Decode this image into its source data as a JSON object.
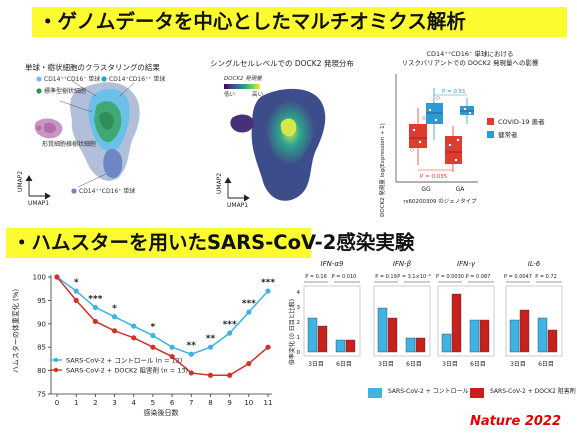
{
  "banners": {
    "top": "・ゲノムデータを中心としたマルチオミクス解析",
    "middle": "・ハムスターを用いたSARS-CoV-2感染実験"
  },
  "umap_left": {
    "title": "単球・樹状細胞のクラスタリングの結果",
    "clusters": [
      "CD14⁺⁺CD16⁻ 単球",
      "CD14⁺CD16⁺⁺ 単球",
      "標準型樹状細胞",
      "形質細胞様樹状細胞",
      "CD14⁺⁺CD16⁺ 単球"
    ],
    "axis_x": "UMAP1",
    "axis_y": "UMAP2"
  },
  "umap_mid": {
    "title": "シングルセルレベルでの DOCK2 発現分布",
    "legend_title": "DOCK2 発現量",
    "legend_low": "低い",
    "legend_high": "高い",
    "axis_x": "UMAP1",
    "axis_y": "UMAP2"
  },
  "box_right": {
    "title_line1": "CD14⁺⁺CD16⁻ 単球における",
    "title_line2": "リスクバリアントでの DOCK2 発現量への影響",
    "ylabel": "DOCK2 発現量 log(Expression + 1)",
    "xlabel": "rs60200309 のジェノタイプ",
    "categories": [
      "GG",
      "GA"
    ],
    "p_healthy": "P = 0.51",
    "p_covid": "P = 0.035",
    "legend": [
      "COVID-19 患者",
      "健常者"
    ],
    "colors": {
      "covid": "#e03b2f",
      "healthy": "#2a9bd7"
    }
  },
  "chart_data": [
    {
      "type": "line",
      "xlabel": "感染後日数",
      "ylabel": "ハムスターの体重変化 (%)",
      "x": [
        0,
        1,
        2,
        3,
        4,
        5,
        6,
        7,
        8,
        9,
        10,
        11
      ],
      "xlim": [
        0,
        11
      ],
      "ylim": [
        75,
        100
      ],
      "yticks": [
        75,
        80,
        85,
        90,
        95,
        100
      ],
      "series": [
        {
          "name": "SARS-CoV-2 + コントロール (n = 12)",
          "color": "#3bb3e3",
          "values": [
            100,
            97,
            93.5,
            91.5,
            89.5,
            87.5,
            85,
            83.5,
            85,
            88,
            92.5,
            97
          ]
        },
        {
          "name": "SARS-CoV-2 + DOCK2 阻害剤 (n = 13)",
          "color": "#d3302a",
          "values": [
            100,
            95,
            90.5,
            88.5,
            87,
            85,
            83,
            79.5,
            79,
            79,
            81.5,
            85
          ]
        }
      ],
      "significance": [
        "",
        "*",
        "***",
        "*",
        "",
        "*",
        "",
        "**",
        "**",
        "***",
        "***",
        "***"
      ]
    },
    {
      "type": "box",
      "ylabel": "倍率変化 (0 日目と比較)",
      "panels": [
        {
          "gene": "IFN-α9",
          "p_day3": "P = 0.16",
          "p_day6": "P = 0.010"
        },
        {
          "gene": "IFN-β",
          "p_day3": "P = 0.19",
          "p_day6": "P = 3.1×10⁻⁴"
        },
        {
          "gene": "IFN-γ",
          "p_day3": "P = 0.0030",
          "p_day6": "P = 0.087"
        },
        {
          "gene": "IL-6",
          "p_day3": "P = 0.0047",
          "p_day6": "P = 0.72"
        }
      ],
      "days": [
        "3日目",
        "6日目"
      ],
      "legend": [
        "SARS-CoV-2 + コントロール",
        "SARS-CoV-2 + DOCK2 阻害剤"
      ]
    }
  ],
  "reference": "Nature 2022"
}
